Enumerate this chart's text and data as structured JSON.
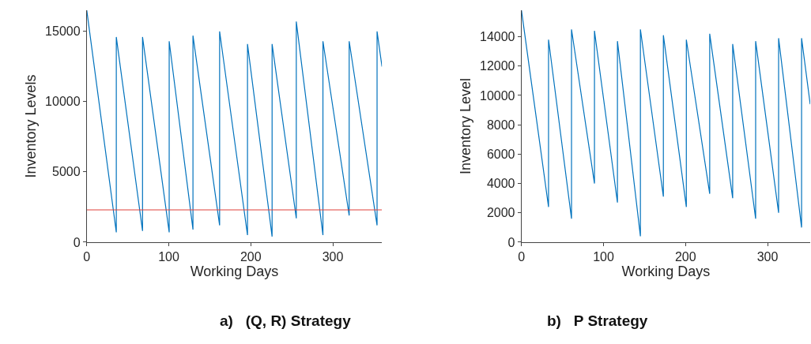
{
  "chart_data": [
    {
      "type": "line",
      "title": "a)   (Q, R) Strategy",
      "xlabel": "Working Days",
      "ylabel": "Inventory Levels",
      "xlim": [
        0,
        360
      ],
      "xticks": [
        0,
        100,
        200,
        300
      ],
      "ylim": [
        0,
        16500
      ],
      "yticks": [
        0,
        5000,
        10000,
        15000
      ],
      "marker": "none",
      "series": [
        {
          "color": "#0072bd",
          "x": [
            0,
            36,
            36,
            68,
            68,
            100.5,
            100.5,
            129.5,
            129.5,
            162,
            162,
            196,
            196,
            226,
            226,
            255.5,
            255.5,
            288,
            288,
            320,
            320,
            354,
            354,
            360
          ],
          "values": [
            16500,
            700,
            14600,
            800,
            14600,
            700,
            14300,
            900,
            14700,
            1200,
            15000,
            500,
            14100,
            400,
            14100,
            1700,
            15700,
            500,
            14300,
            1900,
            14300,
            1200,
            15000,
            12500
          ]
        }
      ],
      "ref_lines": [
        {
          "axis": "y",
          "value": 2300,
          "color": "#e0403a"
        }
      ]
    },
    {
      "type": "line",
      "title": "b)   P Strategy",
      "xlabel": "Working Days",
      "ylabel": "Inventory Level",
      "xlim": [
        0,
        352
      ],
      "xticks": [
        0,
        100,
        200,
        300
      ],
      "ylim": [
        0,
        15800
      ],
      "yticks": [
        0,
        2000,
        4000,
        6000,
        8000,
        10000,
        12000,
        14000
      ],
      "marker": "none",
      "series": [
        {
          "color": "#0072bd",
          "x": [
            0,
            33,
            33,
            61,
            61,
            89,
            89,
            117,
            117,
            145,
            145,
            173,
            173,
            201,
            201,
            229.5,
            229.5,
            257.5,
            257.5,
            285.5,
            285.5,
            313.5,
            313.5,
            341.5,
            341.5,
            352
          ],
          "values": [
            15800,
            2400,
            13800,
            1600,
            14500,
            4000,
            14400,
            2700,
            13700,
            400,
            14500,
            3100,
            14100,
            2400,
            13800,
            3300,
            14200,
            3000,
            13500,
            1600,
            13700,
            2000,
            13900,
            1000,
            13900,
            9400
          ]
        }
      ]
    }
  ]
}
